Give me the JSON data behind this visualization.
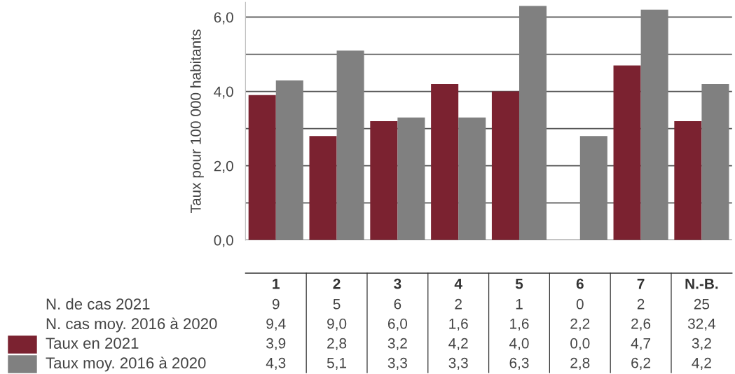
{
  "chart_data": {
    "type": "bar",
    "ylabel": "Taux pour 100 000 habitants",
    "categories": [
      "1",
      "2",
      "3",
      "4",
      "5",
      "6",
      "7",
      "N.-B."
    ],
    "series": [
      {
        "name": "Taux en 2021",
        "color": "#7b2230",
        "values": [
          3.9,
          2.8,
          3.2,
          4.2,
          4.0,
          0.0,
          4.7,
          3.2
        ],
        "value_labels": [
          "3,9",
          "2,8",
          "3,2",
          "4,2",
          "4,0",
          "0,0",
          "4,7",
          "3,2"
        ]
      },
      {
        "name": "Taux moy. 2016 à 2020",
        "color": "#808080",
        "values": [
          4.3,
          5.1,
          3.3,
          3.3,
          6.3,
          2.8,
          6.2,
          4.2
        ],
        "value_labels": [
          "4,3",
          "5,1",
          "3,3",
          "3,3",
          "6,3",
          "2,8",
          "6,2",
          "4,2"
        ]
      }
    ],
    "yticks": [
      {
        "value": 0,
        "label": "0,0"
      },
      {
        "value": 1,
        "label": null
      },
      {
        "value": 2,
        "label": "2,0"
      },
      {
        "value": 3,
        "label": null
      },
      {
        "value": 4,
        "label": "4,0"
      },
      {
        "value": 5,
        "label": null
      },
      {
        "value": 6,
        "label": "6,0"
      }
    ],
    "ylim": [
      0,
      6.4
    ],
    "grid": "y",
    "legend": "bottom left",
    "annotations": [
      "N. de cas 2021",
      "9",
      "5",
      "6",
      "2",
      "1",
      "0",
      "2",
      "25",
      "N. cas moy. 2016 à 2020",
      "9,4",
      "9,0",
      "6,0",
      "1,6",
      "1,6",
      "2,2",
      "2,6",
      "32,4"
    ]
  }
}
